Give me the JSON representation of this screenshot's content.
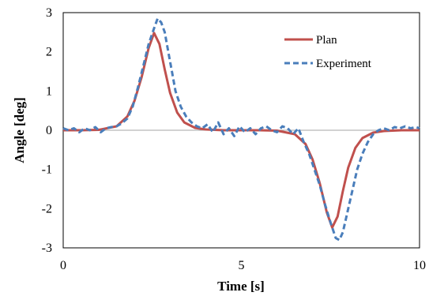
{
  "chart_data": {
    "type": "line",
    "title": "",
    "xlabel": "Time [s]",
    "ylabel": "Angle [deg]",
    "xlim": [
      0,
      10
    ],
    "ylim": [
      -3,
      3
    ],
    "x_ticks": [
      0,
      5,
      10
    ],
    "y_ticks": [
      3,
      2,
      1,
      0,
      -1,
      -2,
      -3
    ],
    "zero_line": true,
    "grid": false,
    "legend_position": "top-right",
    "series": [
      {
        "name": "Plan",
        "color": "#c0504d",
        "style": "solid",
        "x": [
          0,
          0.5,
          1.0,
          1.5,
          1.8,
          2.0,
          2.2,
          2.4,
          2.55,
          2.7,
          2.85,
          3.0,
          3.2,
          3.4,
          3.7,
          4.0,
          4.5,
          5.0,
          5.5,
          6.0,
          6.5,
          6.8,
          7.0,
          7.2,
          7.4,
          7.55,
          7.7,
          7.85,
          8.0,
          8.2,
          8.4,
          8.7,
          9.0,
          9.5,
          10.0
        ],
        "y": [
          0,
          0,
          0.01,
          0.1,
          0.35,
          0.75,
          1.35,
          2.1,
          2.48,
          2.2,
          1.55,
          0.95,
          0.45,
          0.2,
          0.06,
          0.02,
          0,
          0,
          0,
          -0.01,
          -0.1,
          -0.35,
          -0.75,
          -1.35,
          -2.1,
          -2.48,
          -2.2,
          -1.55,
          -0.95,
          -0.45,
          -0.2,
          -0.06,
          -0.02,
          0,
          0
        ]
      },
      {
        "name": "Experiment",
        "color": "#4a7ebb",
        "style": "dashed",
        "x": [
          0,
          0.15,
          0.3,
          0.45,
          0.6,
          0.75,
          0.9,
          1.05,
          1.2,
          1.35,
          1.5,
          1.65,
          1.8,
          1.95,
          2.1,
          2.25,
          2.4,
          2.55,
          2.65,
          2.75,
          2.85,
          2.95,
          3.05,
          3.15,
          3.3,
          3.45,
          3.6,
          3.75,
          3.9,
          4.05,
          4.2,
          4.35,
          4.5,
          4.65,
          4.8,
          4.95,
          5.1,
          5.25,
          5.4,
          5.55,
          5.7,
          5.85,
          6.0,
          6.15,
          6.3,
          6.45,
          6.6,
          6.75,
          6.9,
          7.05,
          7.2,
          7.35,
          7.5,
          7.65,
          7.75,
          7.85,
          7.95,
          8.1,
          8.25,
          8.4,
          8.55,
          8.7,
          8.85,
          9.0,
          9.15,
          9.3,
          9.45,
          9.6,
          9.75,
          9.9,
          10.0
        ],
        "y": [
          0.05,
          0.0,
          0.05,
          -0.05,
          0.05,
          0.0,
          0.08,
          -0.05,
          0.05,
          0.08,
          0.1,
          0.18,
          0.3,
          0.6,
          1.1,
          1.65,
          2.2,
          2.6,
          2.85,
          2.75,
          2.5,
          2.0,
          1.5,
          1.0,
          0.6,
          0.35,
          0.2,
          0.1,
          0.05,
          0.15,
          -0.05,
          0.2,
          -0.1,
          0.05,
          -0.15,
          0.1,
          -0.05,
          0.05,
          -0.1,
          0.05,
          0.1,
          0.0,
          -0.05,
          0.1,
          0.05,
          -0.1,
          0.05,
          -0.3,
          -0.6,
          -1.0,
          -1.4,
          -1.9,
          -2.35,
          -2.75,
          -2.8,
          -2.6,
          -2.2,
          -1.6,
          -1.0,
          -0.6,
          -0.3,
          -0.1,
          0.0,
          0.05,
          0.0,
          0.08,
          0.05,
          0.1,
          0.05,
          0.08,
          0.05
        ]
      }
    ]
  }
}
